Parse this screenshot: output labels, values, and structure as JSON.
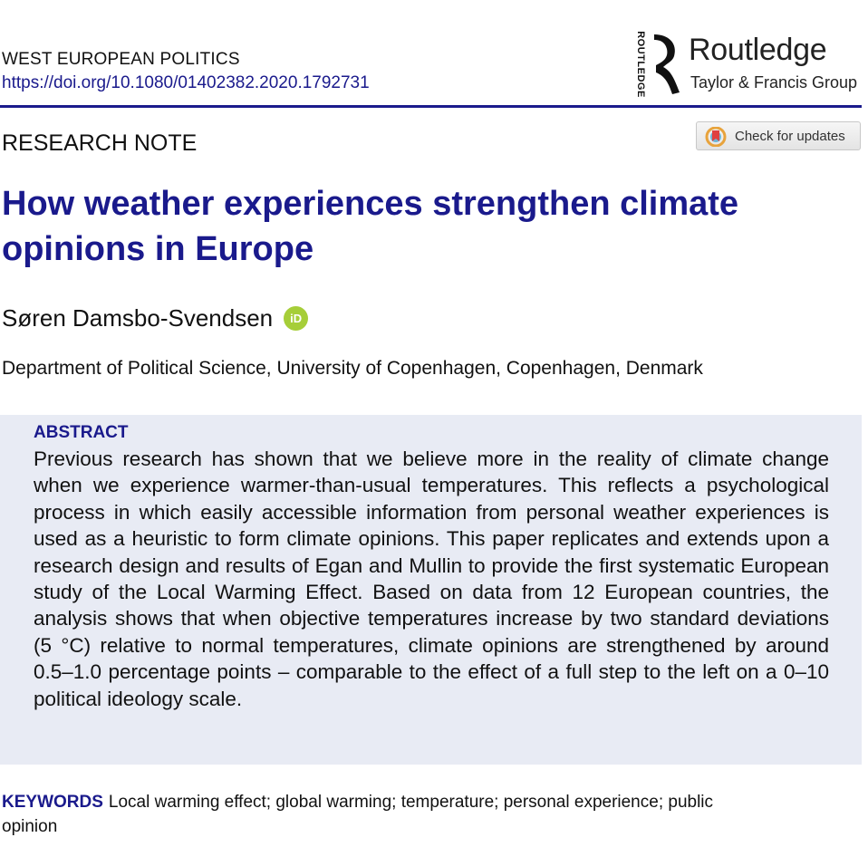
{
  "header": {
    "journal": "WEST EUROPEAN POLITICS",
    "doi": "https://doi.org/10.1080/01402382.2020.1792731"
  },
  "logo": {
    "vertical_text": "ROUTLEDGE",
    "publisher": "Routledge",
    "group": "Taylor & Francis Group"
  },
  "article_type": "RESEARCH NOTE",
  "check_updates": "Check for updates",
  "title": "How weather experiences strengthen climate opinions in Europe",
  "author": "Søren Damsbo-Svendsen",
  "orcid_icon_label": "iD",
  "affiliation": "Department of Political Science, University of Copenhagen, Copenhagen, Denmark",
  "abstract": {
    "heading": "ABSTRACT",
    "text": "Previous research has shown that we believe more in the reality of climate change when we experience warmer-than-usual temperatures. This reflects a psychological process in which easily accessible information from personal weather experiences is used as a heuristic to form climate opinions. This paper replicates and extends upon a research design and results of Egan and Mullin to provide the first systematic European study of the Local Warming Effect. Based on data from 12 European countries, the analysis shows that when objective temperatures increase by two standard deviations (5 °C) rela­tive to normal temperatures, climate opinions are strengthened by around 0.5–1.0 percentage points – comparable to the effect of a full step to the left on a 0–10 political ideology scale."
  },
  "keywords": {
    "label": "KEYWORDS",
    "text": "Local warming effect; global warming; temperature; personal experience; public opinion"
  },
  "colors": {
    "accent": "#1a1a8c",
    "abstract_bg": "#e8ebf4",
    "orcid": "#a6ce39"
  }
}
